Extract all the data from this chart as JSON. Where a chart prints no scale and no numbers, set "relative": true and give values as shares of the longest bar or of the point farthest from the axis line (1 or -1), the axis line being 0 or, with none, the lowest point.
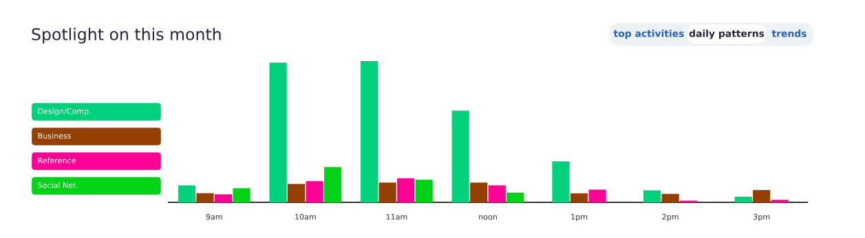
{
  "chart_data": {
    "type": "bar",
    "title": "Spotlight on this month",
    "relative": true,
    "legend": "left",
    "annotations": [
      "top activities",
      "daily patterns",
      "trends"
    ],
    "categories": [
      "9am",
      "10am",
      "11am",
      "noon",
      "1pm",
      "2pm",
      "3pm"
    ],
    "series": [
      {
        "name": "Design/Comp.",
        "color": "#00d17a",
        "values": [
          0.12,
          0.99,
          1,
          0.65,
          0.29,
          0.085,
          0.04
        ]
      },
      {
        "name": "Business",
        "color": "#953f00",
        "values": [
          0.065,
          0.13,
          0.14,
          0.14,
          0.064,
          0.06,
          0.087
        ]
      },
      {
        "name": "Reference",
        "color": "#ff0096",
        "values": [
          0.057,
          0.15,
          0.17,
          0.12,
          0.09,
          0.012,
          0.018
        ]
      },
      {
        "name": "Social Net.",
        "color": "#00d215",
        "values": [
          0.1,
          0.25,
          0.16,
          0.069,
          null,
          null,
          null
        ]
      }
    ]
  }
}
